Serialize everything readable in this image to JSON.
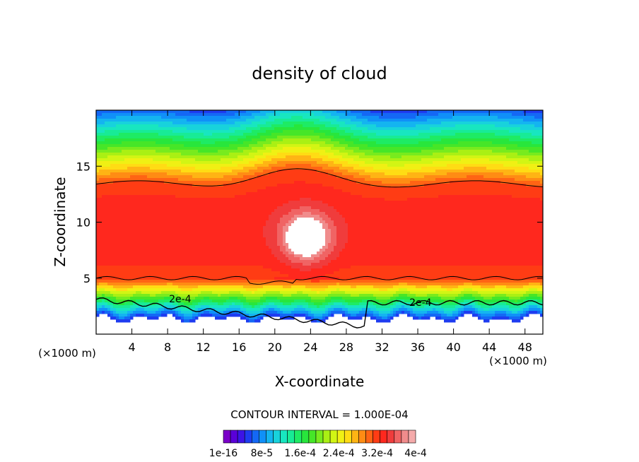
{
  "chart_data": {
    "type": "heatmap",
    "title": "density of cloud",
    "xlabel": "X-coordinate",
    "ylabel": "Z-coordinate",
    "x_unit_note": "(×1000 m)",
    "x_unit_note_right": "(×1000 m)",
    "xlim": [
      0,
      50
    ],
    "ylim": [
      0,
      20
    ],
    "x_ticks": [
      4,
      8,
      12,
      16,
      20,
      24,
      28,
      32,
      36,
      40,
      44,
      48
    ],
    "y_ticks": [
      5,
      10,
      15
    ],
    "contour_interval_text": "CONTOUR INTERVAL = 1.000E-04",
    "colorbar_labels": [
      "1e-16",
      "8e-5",
      "1.6e-4",
      "2.4e-4",
      "3.2e-4",
      "4e-4"
    ],
    "contour_labels": [
      {
        "text": "2e-4",
        "x": 9.4,
        "y": 3.15
      },
      {
        "text": "2e-4",
        "x": 36.3,
        "y": 2.85
      }
    ],
    "value_range": [
      0,
      0.0004
    ],
    "colormap": [
      "#7a00c8",
      "#5a00d8",
      "#3c14e6",
      "#1e3cf0",
      "#1468f5",
      "#1090f8",
      "#14b4f0",
      "#18d2dc",
      "#18e6c0",
      "#18eb96",
      "#1eeb64",
      "#28e63c",
      "#46e628",
      "#78eb1e",
      "#aaf014",
      "#d2f514",
      "#f0f014",
      "#ffdc14",
      "#ffb414",
      "#ff8c14",
      "#ff6414",
      "#ff3c14",
      "#ff281e",
      "#f03c3c",
      "#f06464",
      "#f08c8c",
      "#f4aaaa"
    ],
    "notes": "Cloud density field; enhanced core (max ~4e-4) near x=22-26, z=6-10; thin contour lines near z=5, z=3 and z=13.5-15."
  }
}
